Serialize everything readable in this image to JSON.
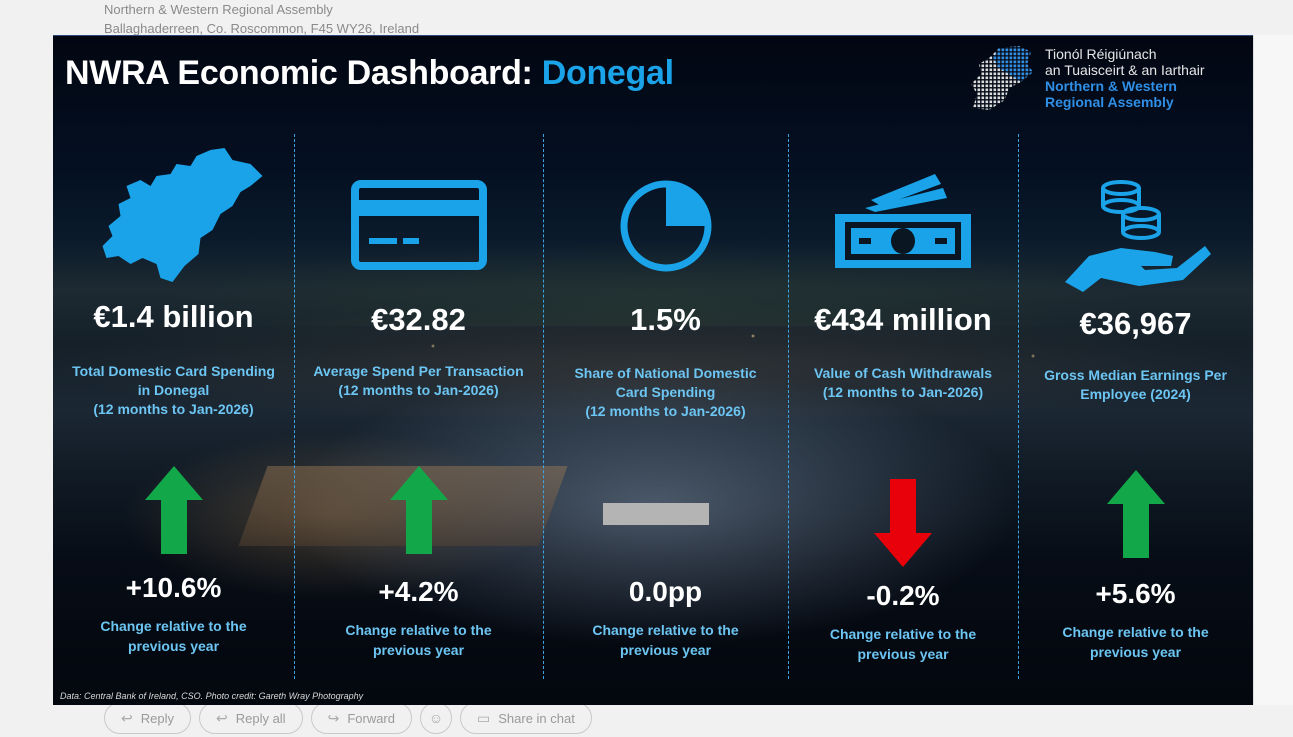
{
  "email": {
    "address_line1": "Northern & Western Regional Assembly",
    "address_line2": "Ballaghaderreen, Co. Roscommon, F45 WY26, Ireland",
    "actions": {
      "reply": "Reply",
      "reply_all": "Reply all",
      "forward": "Forward",
      "share_chat": "Share in chat"
    },
    "more": "..."
  },
  "dashboard": {
    "title_prefix": "NWRA Economic Dashboard:",
    "title_county": "Donegal",
    "logo_text": {
      "irish_line1": "Tionól Réigiúnach",
      "irish_line2": "an Tuaisceirt & an Iarthair",
      "english_line1": "Northern & Western",
      "english_line2": "Regional Assembly"
    },
    "metrics": [
      {
        "icon": "county-map-icon",
        "value": "€1.4 billion",
        "label_lines": [
          "Total Domestic Card Spending",
          "in Donegal",
          "(12 months to Jan-2026)"
        ],
        "change": "+10.6%",
        "direction": "up",
        "change_label_lines": [
          "Change relative to the",
          "previous year"
        ]
      },
      {
        "icon": "credit-card-icon",
        "value": "€32.82",
        "label_lines": [
          "Average Spend Per Transaction",
          "(12 months to Jan-2026)"
        ],
        "change": "+4.2%",
        "direction": "up",
        "change_label_lines": [
          "Change relative to the",
          "previous year"
        ]
      },
      {
        "icon": "pie-chart-icon",
        "value": "1.5%",
        "label_lines": [
          "Share of National Domestic",
          "Card Spending",
          "(12 months to Jan-2026)"
        ],
        "change": "0.0pp",
        "direction": "flat",
        "change_label_lines": [
          "Change relative to the",
          "previous year"
        ]
      },
      {
        "icon": "banknotes-icon",
        "value": "€434 million",
        "label_lines": [
          "Value of Cash Withdrawals",
          "(12 months to Jan-2026)"
        ],
        "change": "-0.2%",
        "direction": "down",
        "change_label_lines": [
          "Change relative to the",
          "previous year"
        ]
      },
      {
        "icon": "coins-hand-icon",
        "value": "€36,967",
        "label_lines": [
          "Gross Median Earnings Per",
          "Employee (2024)"
        ],
        "change": "+5.6%",
        "direction": "up",
        "change_label_lines": [
          "Change relative to the",
          "previous year"
        ]
      }
    ],
    "credit": "Data: Central Bank of Ireland, CSO. Photo credit: Gareth Wray Photography",
    "colors": {
      "accent": "#1aa3e8",
      "label": "#6cc5f2",
      "up": "#12a84a",
      "down": "#e8000a",
      "flat": "#b4b4b4"
    }
  }
}
